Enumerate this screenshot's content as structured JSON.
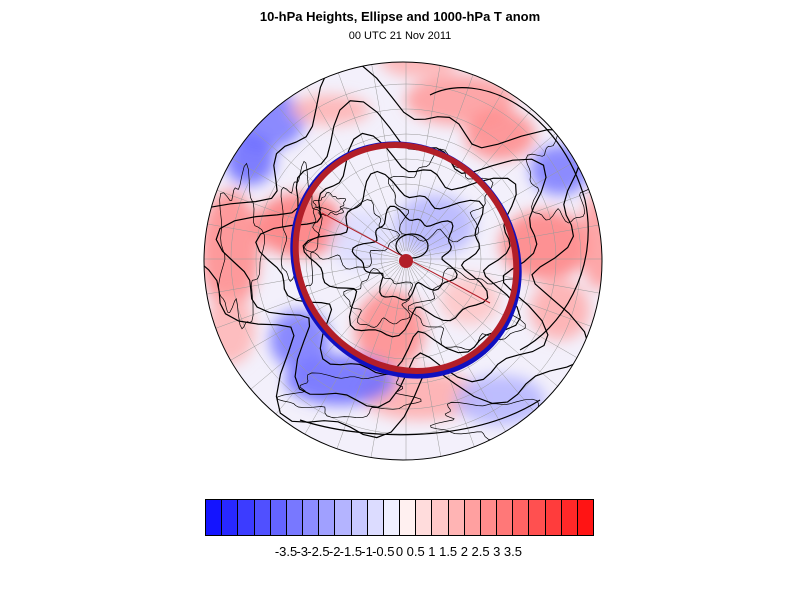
{
  "title": "10-hPa Heights, Ellipse and 1000-hPa T anom",
  "subtitle": "00 UTC 21 Nov 2011",
  "map": {
    "projection": "north-polar-stereographic",
    "fill_field": "1000-hPa temperature anomaly",
    "contour_field": "10-hPa geopotential height",
    "ellipse_colors": [
      "#b21e28",
      "#1010c0"
    ],
    "center_marker_color": "#b21e28"
  },
  "colorbar": {
    "colors": [
      "#1414ff",
      "#2828ff",
      "#3c3cff",
      "#5050ff",
      "#6464ff",
      "#7878ff",
      "#8c8cff",
      "#a0a0ff",
      "#b4b4ff",
      "#c8c8ff",
      "#dcdcff",
      "#f0f0ff",
      "#fff0f0",
      "#ffdcdc",
      "#ffc8c8",
      "#ffb4b4",
      "#ffa0a0",
      "#ff8c8c",
      "#ff7878",
      "#ff6464",
      "#ff5050",
      "#ff3c3c",
      "#ff2828",
      "#ff1414"
    ],
    "labels": [
      "-3.5",
      "-3",
      "-2.5",
      "-2",
      "-1.5",
      "-1",
      "-0.5",
      "0",
      "0.5",
      "1",
      "1.5",
      "2",
      "2.5",
      "3",
      "3.5"
    ]
  }
}
